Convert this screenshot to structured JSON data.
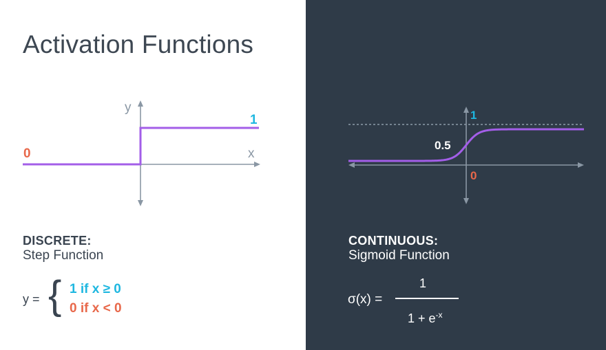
{
  "title": "Activation Functions",
  "colors": {
    "purple": "#a35ee8",
    "cyan": "#1eb7e0",
    "orange": "#e8684a",
    "axis_light": "#8a97a4",
    "dark_bg": "#2f3b48"
  },
  "step": {
    "y_axis_label": "y",
    "x_axis_label": "x",
    "label_one": "1",
    "label_zero": "0",
    "heading": "DISCRETE:",
    "subheading": "Step Function",
    "formula": {
      "lhs": "y =",
      "brace": "{",
      "case_one": "1 if x  ≥ 0",
      "case_zero": "0 if x < 0"
    }
  },
  "sigmoid": {
    "label_one": "1",
    "label_half": "0.5",
    "label_zero": "0",
    "heading": "CONTINUOUS:",
    "subheading": "Sigmoid Function",
    "formula": {
      "lhs": "σ(x) =",
      "numerator": "1",
      "denominator_base": "1 + e",
      "denominator_exp": "-x"
    }
  }
}
